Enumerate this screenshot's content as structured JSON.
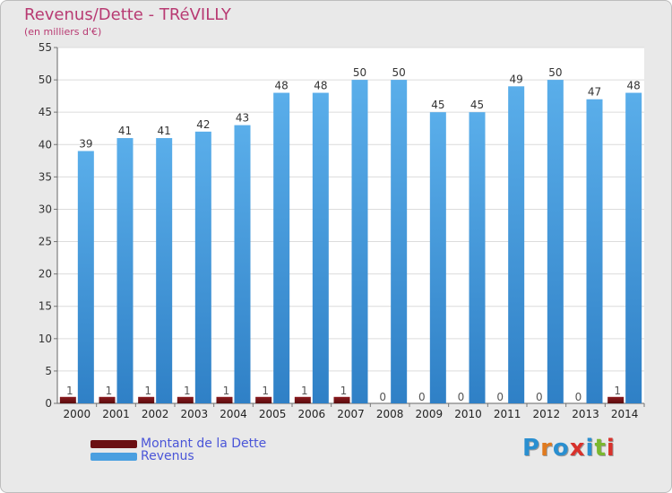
{
  "header": {
    "title": "Revenus/Dette - TRéVILLY",
    "subtitle": "(en milliers d'€)"
  },
  "legend": [
    {
      "label": "Montant de la Dette",
      "color": "#6b0f12"
    },
    {
      "label": "Revenus",
      "color": "#4a9fe0"
    }
  ],
  "logo": {
    "text": "Proxiti",
    "letters": [
      "P",
      "r",
      "o",
      "x",
      "i",
      "t",
      "i"
    ],
    "colors": [
      "#2a8fd0",
      "#e07a1f",
      "#2a8fd0",
      "#d8322c",
      "#2a8fd0",
      "#7ab82e",
      "#d8322c"
    ]
  },
  "chart_data": {
    "type": "bar",
    "title": "Revenus/Dette - TRéVILLY",
    "ylabel": "(en milliers d'€)",
    "categories": [
      "2000",
      "2001",
      "2002",
      "2003",
      "2004",
      "2005",
      "2006",
      "2007",
      "2008",
      "2009",
      "2010",
      "2011",
      "2012",
      "2013",
      "2014"
    ],
    "series": [
      {
        "name": "Montant de la Dette",
        "color": "#6b0f12",
        "values": [
          1,
          1,
          1,
          1,
          1,
          1,
          1,
          1,
          0,
          0,
          0,
          0,
          0,
          0,
          1
        ]
      },
      {
        "name": "Revenus",
        "color": "#4a9fe0",
        "values": [
          39,
          41,
          41,
          42,
          43,
          48,
          48,
          50,
          50,
          45,
          45,
          49,
          50,
          47,
          48
        ]
      }
    ],
    "ylim": [
      0,
      55
    ],
    "yticks": [
      "0",
      "5",
      "10",
      "15",
      "20",
      "25",
      "30",
      "35",
      "40",
      "45",
      "50",
      "55"
    ],
    "grid": true
  }
}
